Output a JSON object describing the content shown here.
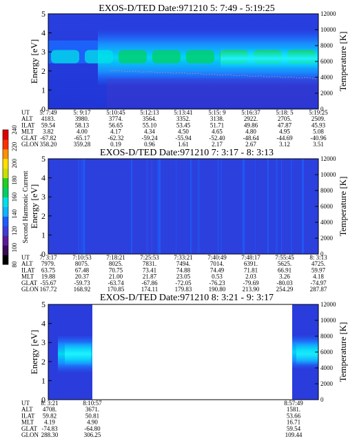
{
  "panels": [
    {
      "title": "EXOS-D/TED   Date:971210  5: 7:49 - 5:19:25",
      "ylabel_left": "Energy [eV]",
      "ylabel_right": "Temperature [K]",
      "yticks_left": [
        "0",
        "1",
        "2",
        "3",
        "4",
        "5"
      ],
      "yticks_right": [
        "0",
        "2000",
        "4000",
        "6000",
        "8000",
        "10000",
        "12000"
      ],
      "row_labels": [
        "UT",
        "ALT",
        "ILAT",
        "MLT",
        "GLAT",
        "GLON"
      ],
      "columns": [
        [
          "5: 7:49",
          "4183.",
          "59.54",
          "3.82",
          "-67.82",
          "358.20"
        ],
        [
          "5: 9:17",
          "3980.",
          "58.13",
          "4.00",
          "-65.17",
          "359.28"
        ],
        [
          "5:10:45",
          "3774.",
          "56.65",
          "4.17",
          "-62.32",
          "0.19"
        ],
        [
          "5:12:13",
          "3564.",
          "55.10",
          "4.34",
          "-59.24",
          "0.96"
        ],
        [
          "5:13:41",
          "3352.",
          "53.45",
          "4.50",
          "-55.94",
          "1.61"
        ],
        [
          "5:15: 9",
          "3138.",
          "51.71",
          "4.65",
          "-52.40",
          "2.17"
        ],
        [
          "5:16:37",
          "2922.",
          "49.86",
          "4.80",
          "-48.64",
          "2.67"
        ],
        [
          "5:18: 5",
          "2705.",
          "47.87",
          "4.95",
          "-44.69",
          "3.12"
        ],
        [
          "5:19:25",
          "2509.",
          "45.93",
          "5.08",
          "-40.96",
          "3.51"
        ]
      ]
    },
    {
      "title": "EXOS-D/TED   Date:971210  7: 3:17 - 8: 3:13",
      "ylabel_left": "Energy [eV]",
      "ylabel_right": "Temperature [K]",
      "yticks_left": [
        "0",
        "1",
        "2",
        "3",
        "4",
        "5"
      ],
      "yticks_right": [
        "0",
        "2000",
        "4000",
        "6000",
        "8000",
        "10000",
        "12000"
      ],
      "row_labels": [
        "UT",
        "ALT",
        "ILAT",
        "MLT",
        "GLAT",
        "GLON"
      ],
      "columns": [
        [
          "7: 3:17",
          "7979.",
          "63.75",
          "19.88",
          "-55.67",
          "167.72"
        ],
        [
          "7:10:53",
          "8075.",
          "67.48",
          "20.37",
          "-59.73",
          "168.92"
        ],
        [
          "7:18:21",
          "8025.",
          "70.75",
          "21.00",
          "-63.74",
          "170.85"
        ],
        [
          "7:25:53",
          "7831.",
          "73.41",
          "21.87",
          "-67.86",
          "174.11"
        ],
        [
          "7:33:21",
          "7494.",
          "74.88",
          "23.05",
          "-72.05",
          "179.83"
        ],
        [
          "7:40:49",
          "7014.",
          "74.49",
          "0.53",
          "-76.23",
          "190.80"
        ],
        [
          "7:48:17",
          "6391.",
          "71.81",
          "2.03",
          "-79.69",
          "213.90"
        ],
        [
          "7:55:45",
          "5625.",
          "66.91",
          "3.26",
          "-80.03",
          "254.29"
        ],
        [
          "8: 3:13",
          "4725.",
          "59.97",
          "4.18",
          "-74.97",
          "287.87"
        ]
      ]
    },
    {
      "title": "EXOS-D/TED   Date:971210  8: 3:21 - 9: 3:17",
      "ylabel_left": "Energy [eV]",
      "ylabel_right": "Temperature [K]",
      "yticks_left": [
        "0",
        "1",
        "2",
        "3",
        "4",
        "5"
      ],
      "yticks_right": [
        "0",
        "2000",
        "4000",
        "6000",
        "8000",
        "10000",
        "12000"
      ],
      "row_labels": [
        "UT",
        "ALT",
        "ILAT",
        "MLT",
        "GLAT",
        "GLON"
      ],
      "columns": [
        [
          "8: 3:21",
          "4708.",
          "59.82",
          "4.19",
          "-74.83",
          "288.30"
        ],
        [
          "8:10:57",
          "3671.",
          "50.81",
          "4.90",
          "-64.80",
          "306.25"
        ],
        [
          "8:57:49",
          "1581.",
          "53.66",
          "16.71",
          "59.54",
          "109.44"
        ]
      ]
    }
  ],
  "colorbar": {
    "label": "Second Harmonic Current",
    "ticks": [
      "80",
      "100",
      "120",
      "140",
      "160",
      "180",
      "200",
      "220",
      "240"
    ],
    "colors": [
      "#000000",
      "#3a0a5a",
      "#5a1a9a",
      "#3c3cd8",
      "#1e5cff",
      "#10b4ff",
      "#00e0e8",
      "#00d060",
      "#20d020",
      "#c8e000",
      "#ffe000",
      "#ff9000",
      "#ff3000",
      "#e00000"
    ]
  },
  "chart_data": [
    {
      "type": "heatmap",
      "title": "EXOS-D/TED   Date:971210  5: 7:49 - 5:19:25",
      "xlabel": "UT",
      "ylabel": "Energy [eV]",
      "ylabel_right": "Temperature [K]",
      "ylim": [
        0,
        5
      ],
      "ylim_right": [
        0,
        12000
      ],
      "x_ticks": [
        "5: 7:49",
        "5: 9:17",
        "5:10:45",
        "5:12:13",
        "5:13:41",
        "5:15: 9",
        "5:16:37",
        "5:18: 5",
        "5:19:25"
      ],
      "colorbar_range": [
        80,
        240
      ],
      "peak_energy_band_eV": [
        1.8,
        3.4
      ],
      "peak_level_by_segment": [
        150,
        150,
        160,
        160,
        165,
        175,
        175,
        175,
        175
      ]
    },
    {
      "type": "heatmap",
      "title": "EXOS-D/TED   Date:971210  7: 3:17 - 8: 3:13",
      "xlabel": "UT",
      "ylabel": "Energy [eV]",
      "ylabel_right": "Temperature [K]",
      "ylim": [
        0,
        5
      ],
      "ylim_right": [
        0,
        12000
      ],
      "x_ticks": [
        "7: 3:17",
        "7:10:53",
        "7:18:21",
        "7:25:53",
        "7:33:21",
        "7:40:49",
        "7:48:17",
        "7:55:45",
        "8: 3:13"
      ],
      "colorbar_range": [
        80,
        240
      ],
      "background_level": 125
    },
    {
      "type": "heatmap",
      "title": "EXOS-D/TED   Date:971210  8: 3:21 - 9: 3:17",
      "xlabel": "UT",
      "ylabel": "Energy [eV]",
      "ylabel_right": "Temperature [K]",
      "ylim": [
        0,
        5
      ],
      "ylim_right": [
        0,
        12000
      ],
      "x_ticks": [
        "8: 3:21",
        "8:10:57",
        "8:57:49"
      ],
      "colorbar_range": [
        80,
        240
      ],
      "data_intervals_UT": [
        [
          "8: 3:21",
          "8:10:57"
        ],
        [
          "8:57:49",
          "9: 3:17"
        ]
      ],
      "peak_energy_band_eV": [
        1.8,
        3.0
      ]
    }
  ]
}
